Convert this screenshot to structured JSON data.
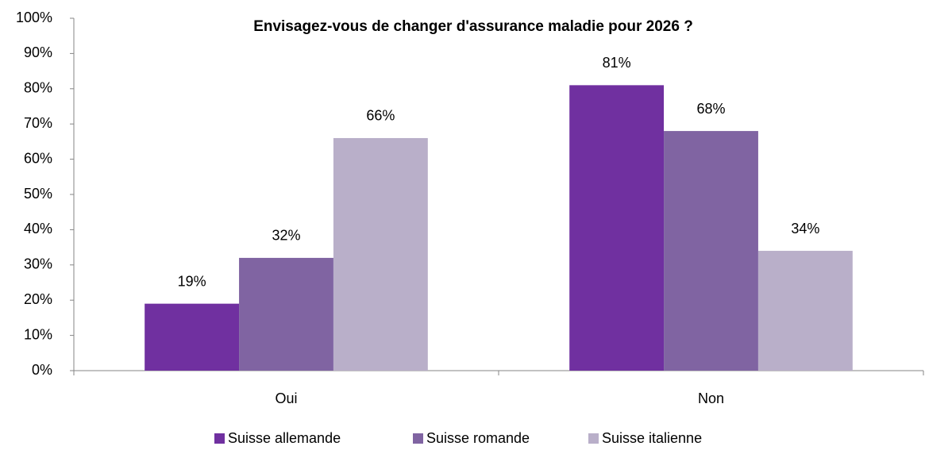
{
  "chart_data": {
    "type": "bar",
    "title": "Envisagez-vous de changer d'assurance maladie pour 2026 ?",
    "categories": [
      "Oui",
      "Non"
    ],
    "series": [
      {
        "name": "Suisse allemande",
        "color": "#7030a0",
        "values": [
          19,
          81
        ],
        "value_labels": [
          "19%",
          "81%"
        ]
      },
      {
        "name": "Suisse romande",
        "color": "#8064a2",
        "values": [
          32,
          68
        ],
        "value_labels": [
          "32%",
          "68%"
        ]
      },
      {
        "name": "Suisse italienne",
        "color": "#b9afc9",
        "values": [
          66,
          34
        ],
        "value_labels": [
          "66%",
          "34%"
        ]
      }
    ],
    "ylim": [
      0,
      100
    ],
    "yticks": [
      {
        "value": 0,
        "label": "0%"
      },
      {
        "value": 10,
        "label": "10%"
      },
      {
        "value": 20,
        "label": "20%"
      },
      {
        "value": 30,
        "label": "30%"
      },
      {
        "value": 40,
        "label": "40%"
      },
      {
        "value": 50,
        "label": "50%"
      },
      {
        "value": 60,
        "label": "60%"
      },
      {
        "value": 70,
        "label": "70%"
      },
      {
        "value": 80,
        "label": "80%"
      },
      {
        "value": 90,
        "label": "90%"
      },
      {
        "value": 100,
        "label": "100%"
      }
    ],
    "grid": false,
    "legend": "bottom"
  }
}
